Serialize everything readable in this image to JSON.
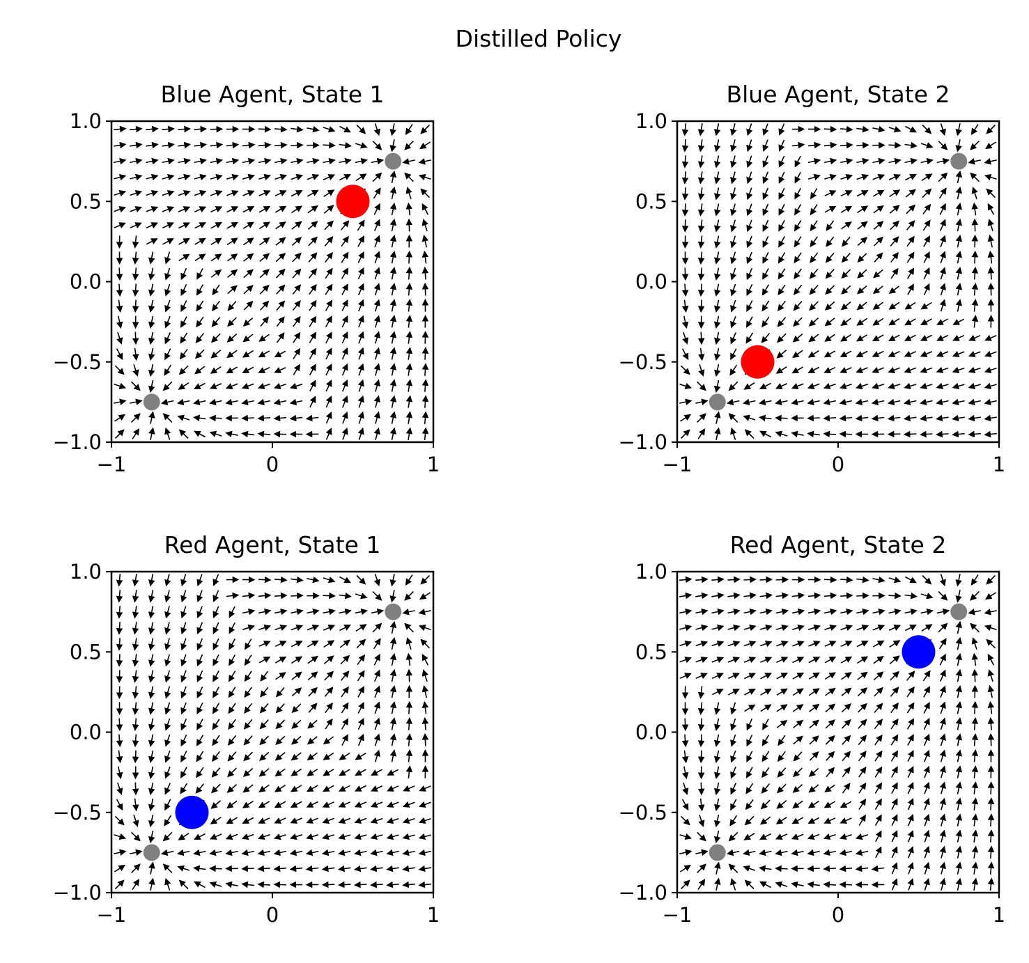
{
  "figure": {
    "title": "Distilled Policy"
  },
  "chart_data": [
    {
      "type": "quiver",
      "title": "Blue Agent, State 1",
      "xlim": [
        -1,
        1
      ],
      "ylim": [
        -1,
        1
      ],
      "xticks": [
        -1,
        0,
        1
      ],
      "xtick_labels": [
        "−1",
        "0",
        "1"
      ],
      "yticks": [
        -1.0,
        -0.5,
        0.0,
        0.5,
        1.0
      ],
      "ytick_labels": [
        "−1.0",
        "−0.5",
        "0.0",
        "0.5",
        "1.0"
      ],
      "grid": false,
      "field": {
        "grid_n": 20,
        "description_points": "arrows point toward nearest goal region, strongest near diagonal"
      },
      "goals": [
        {
          "x": -0.75,
          "y": -0.75,
          "color": "#808080"
        },
        {
          "x": 0.75,
          "y": 0.75,
          "color": "#808080"
        }
      ],
      "other_agent": {
        "x": 0.5,
        "y": 0.5,
        "color": "#ff0000"
      },
      "sinks": [
        {
          "x": -0.75,
          "y": -0.75
        },
        {
          "x": 0.75,
          "y": 0.75
        }
      ],
      "bias_goal": 1
    },
    {
      "type": "quiver",
      "title": "Blue Agent, State 2",
      "xlim": [
        -1,
        1
      ],
      "ylim": [
        -1,
        1
      ],
      "xticks": [
        -1,
        0,
        1
      ],
      "xtick_labels": [
        "−1",
        "0",
        "1"
      ],
      "yticks": [
        -1.0,
        -0.5,
        0.0,
        0.5,
        1.0
      ],
      "ytick_labels": [
        "−1.0",
        "−0.5",
        "0.0",
        "0.5",
        "1.0"
      ],
      "grid": false,
      "goals": [
        {
          "x": -0.75,
          "y": -0.75,
          "color": "#808080"
        },
        {
          "x": 0.75,
          "y": 0.75,
          "color": "#808080"
        }
      ],
      "other_agent": {
        "x": -0.5,
        "y": -0.5,
        "color": "#ff0000"
      },
      "sinks": [
        {
          "x": -0.75,
          "y": -0.75
        },
        {
          "x": 0.75,
          "y": 0.75
        }
      ],
      "bias_goal": 0
    },
    {
      "type": "quiver",
      "title": "Red Agent, State 1",
      "xlim": [
        -1,
        1
      ],
      "ylim": [
        -1,
        1
      ],
      "xticks": [
        -1,
        0,
        1
      ],
      "xtick_labels": [
        "−1",
        "0",
        "1"
      ],
      "yticks": [
        -1.0,
        -0.5,
        0.0,
        0.5,
        1.0
      ],
      "ytick_labels": [
        "−1.0",
        "−0.5",
        "0.0",
        "0.5",
        "1.0"
      ],
      "grid": false,
      "goals": [
        {
          "x": -0.75,
          "y": -0.75,
          "color": "#808080"
        },
        {
          "x": 0.75,
          "y": 0.75,
          "color": "#808080"
        }
      ],
      "other_agent": {
        "x": -0.5,
        "y": -0.5,
        "color": "#0000ff"
      },
      "sinks": [
        {
          "x": -0.75,
          "y": -0.75
        },
        {
          "x": 0.75,
          "y": 0.75
        }
      ],
      "bias_goal": 0
    },
    {
      "type": "quiver",
      "title": "Red Agent, State 2",
      "xlim": [
        -1,
        1
      ],
      "ylim": [
        -1,
        1
      ],
      "xticks": [
        -1,
        0,
        1
      ],
      "xtick_labels": [
        "−1",
        "0",
        "1"
      ],
      "yticks": [
        -1.0,
        -0.5,
        0.0,
        0.5,
        1.0
      ],
      "ytick_labels": [
        "−1.0",
        "−0.5",
        "0.0",
        "0.5",
        "1.0"
      ],
      "grid": false,
      "goals": [
        {
          "x": -0.75,
          "y": -0.75,
          "color": "#808080"
        },
        {
          "x": 0.75,
          "y": 0.75,
          "color": "#808080"
        }
      ],
      "other_agent": {
        "x": 0.5,
        "y": 0.5,
        "color": "#0000ff"
      },
      "sinks": [
        {
          "x": -0.75,
          "y": -0.75
        },
        {
          "x": 0.75,
          "y": 0.75
        }
      ],
      "bias_goal": 1
    }
  ]
}
